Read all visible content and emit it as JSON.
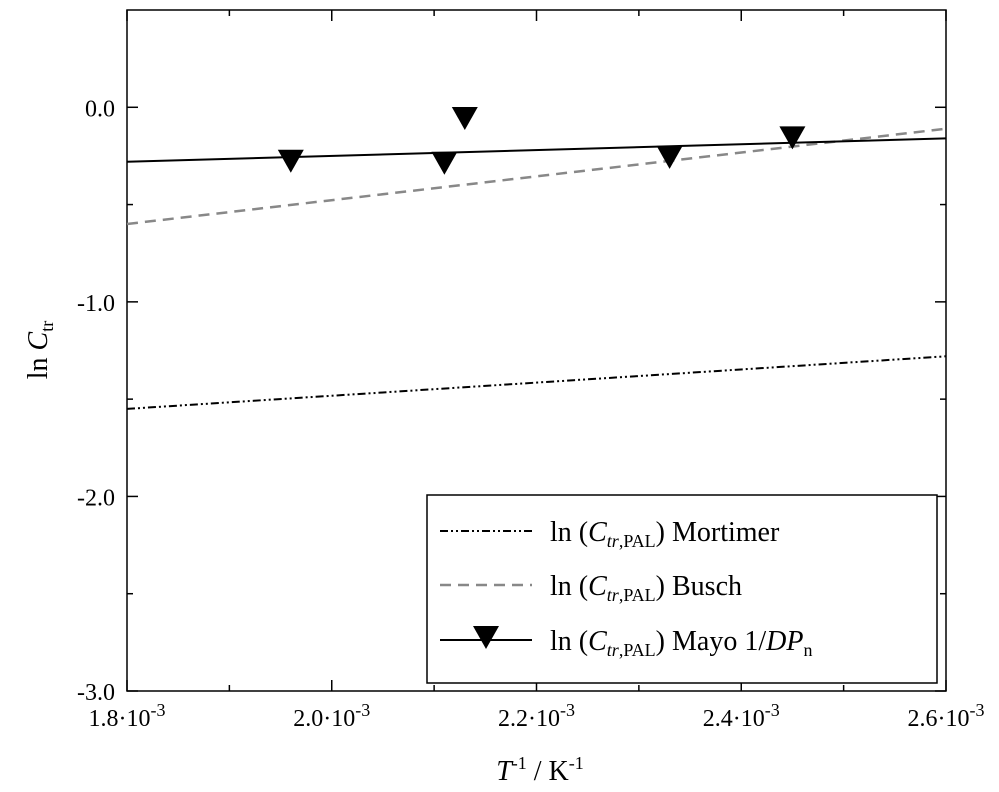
{
  "chart_data": {
    "type": "line",
    "xlabel": "T-1 / K-1",
    "ylabel": "ln Ctr",
    "xlim": [
      0.0018,
      0.0026
    ],
    "ylim": [
      -3.0,
      0.5
    ],
    "x_ticks": [
      {
        "value": 0.0018,
        "base": "1.8·10",
        "exp": "-3"
      },
      {
        "value": 0.002,
        "base": "2.0·10",
        "exp": "-3"
      },
      {
        "value": 0.0022,
        "base": "2.2·10",
        "exp": "-3"
      },
      {
        "value": 0.0024,
        "base": "2.4·10",
        "exp": "-3"
      },
      {
        "value": 0.0026,
        "base": "2.6·10",
        "exp": "-3"
      }
    ],
    "y_ticks": [
      {
        "value": 0.0,
        "label": "0.0"
      },
      {
        "value": -1.0,
        "label": "-1.0"
      },
      {
        "value": -2.0,
        "label": "-2.0"
      },
      {
        "value": -3.0,
        "label": "-3.0"
      }
    ],
    "grid": false,
    "legend_position": "bottom-right",
    "series": [
      {
        "name": "ln (Ctr,PAL) Mortimer",
        "style": "dash-dot-dot",
        "color": "#000000",
        "x": [
          0.0018,
          0.0026
        ],
        "y": [
          -1.55,
          -1.28
        ]
      },
      {
        "name": "ln (Ctr,PAL) Busch",
        "style": "dashed",
        "color": "#888888",
        "x": [
          0.0018,
          0.0026
        ],
        "y": [
          -0.6,
          -0.11
        ]
      },
      {
        "name": "ln (Ctr,PAL) Mayo 1/DPn",
        "style": "solid",
        "color": "#000000",
        "marker": "down-triangle",
        "x": [
          0.0018,
          0.0026
        ],
        "y": [
          -0.28,
          -0.16
        ]
      }
    ],
    "points": {
      "series": "ln (Ctr,PAL) Mayo 1/DPn",
      "x": [
        0.00196,
        0.00211,
        0.00213,
        0.00233,
        0.00245
      ],
      "y": [
        -0.28,
        -0.29,
        -0.06,
        -0.26,
        -0.16
      ]
    }
  },
  "axis_title": {
    "y_prefix": "ln ",
    "y_main": "C",
    "y_sub": "tr",
    "x_main": "T",
    "x_sup": "-1",
    "x_mid": " / K",
    "x_sup2": "-1"
  },
  "legend": {
    "items": [
      {
        "prefix": "ln (",
        "var": "C",
        "sub1": "tr",
        "sub2": ",PAL",
        "suffix": ") Mortimer"
      },
      {
        "prefix": "ln (",
        "var": "C",
        "sub1": "tr",
        "sub2": ",PAL",
        "suffix": ") Busch"
      },
      {
        "prefix": "ln (",
        "var": "C",
        "sub1": "tr",
        "sub2": ",PAL",
        "suffix": ") Mayo 1/",
        "suffix_var": "DP",
        "suffix_sub": "n"
      }
    ]
  }
}
